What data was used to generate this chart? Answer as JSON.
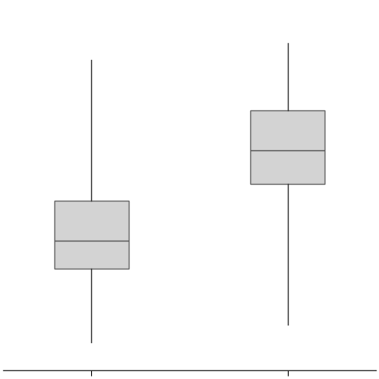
{
  "box1": {
    "whisker_low": 5,
    "q1": 18,
    "median": 23,
    "q3": 30,
    "whisker_high": 55
  },
  "box2": {
    "whisker_low": 8,
    "q1": 33,
    "median": 39,
    "q3": 46,
    "whisker_high": 58
  },
  "positions": [
    1,
    2
  ],
  "box_color": "#d3d3d3",
  "box_edge_color": "#666666",
  "whisker_color": "#333333",
  "median_color": "#555555",
  "ylim": [
    0,
    65
  ],
  "xlim": [
    0.55,
    2.45
  ],
  "box_width": 0.38,
  "cap_size": 0.0,
  "linewidth": 1.0,
  "figsize": [
    4.74,
    4.74
  ],
  "dpi": 100
}
